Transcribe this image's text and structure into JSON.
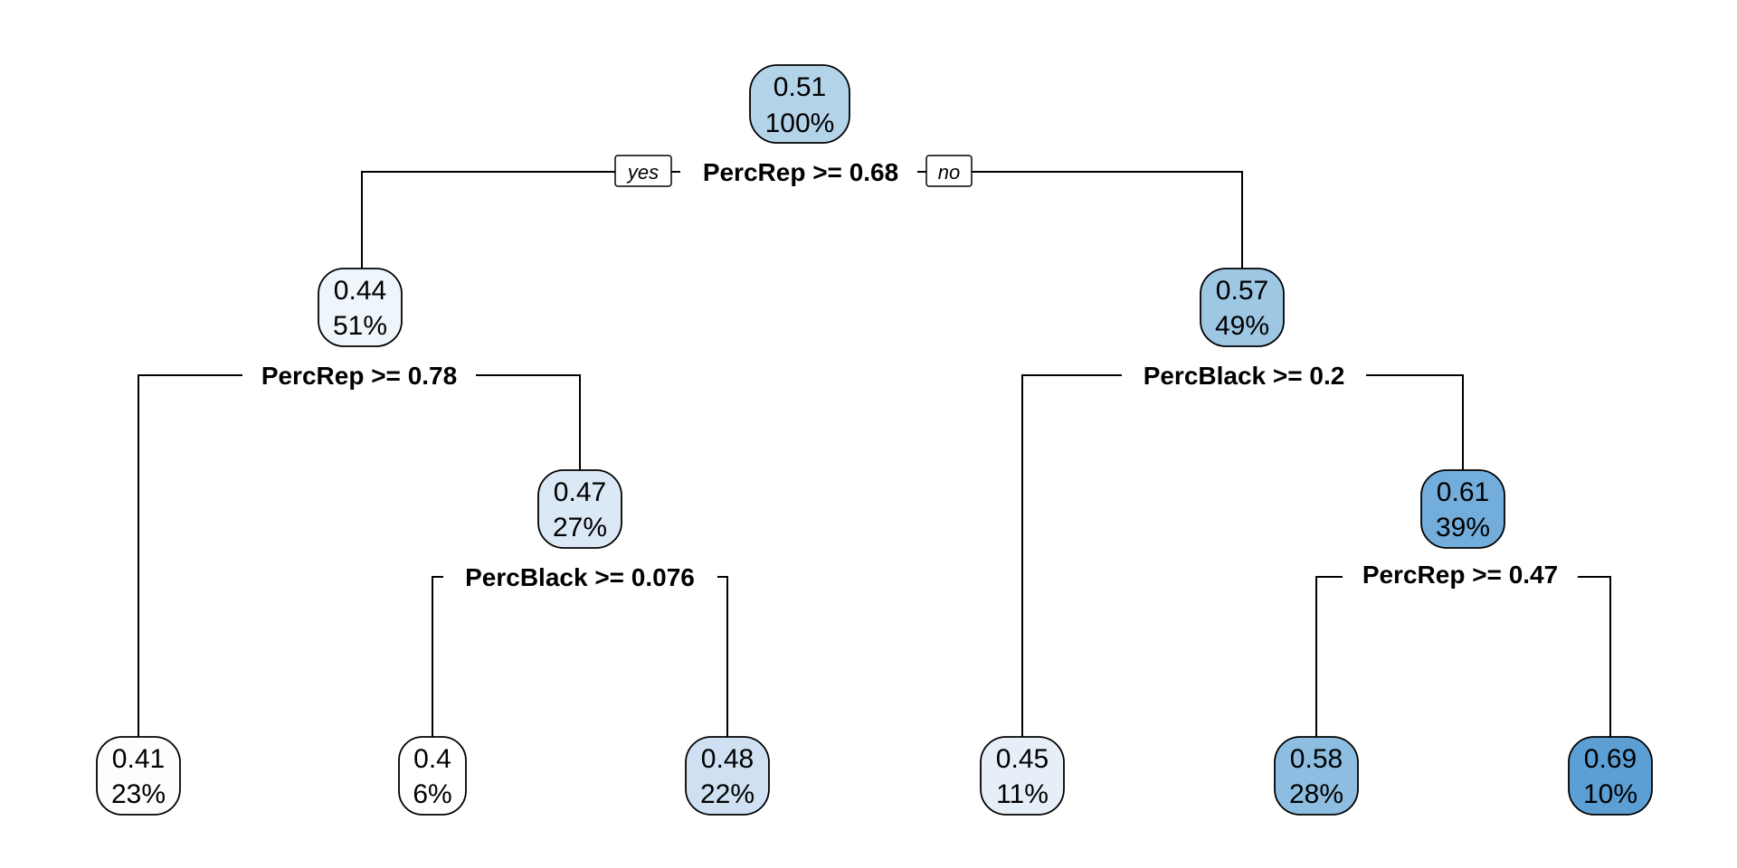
{
  "branch_labels": {
    "yes": "yes",
    "no": "no"
  },
  "nodes": [
    {
      "id": "root",
      "value": "0.51",
      "percent": "100%",
      "color": "#b3d3e9"
    },
    {
      "id": "n2",
      "value": "0.44",
      "percent": "51%",
      "color": "#eef5fb"
    },
    {
      "id": "n3",
      "value": "0.57",
      "percent": "49%",
      "color": "#9ec7e3"
    },
    {
      "id": "n5",
      "value": "0.47",
      "percent": "27%",
      "color": "#dbe8f5"
    },
    {
      "id": "n7",
      "value": "0.61",
      "percent": "39%",
      "color": "#72addb"
    },
    {
      "id": "leaf1",
      "value": "0.41",
      "percent": "23%",
      "color": "#fcfdff"
    },
    {
      "id": "leaf2",
      "value": "0.4",
      "percent": "6%",
      "color": "#ffffff"
    },
    {
      "id": "leaf3",
      "value": "0.48",
      "percent": "22%",
      "color": "#cfe0f2"
    },
    {
      "id": "leaf4",
      "value": "0.45",
      "percent": "11%",
      "color": "#e6eff8"
    },
    {
      "id": "leaf5",
      "value": "0.58",
      "percent": "28%",
      "color": "#8dbde1"
    },
    {
      "id": "leaf6",
      "value": "0.69",
      "percent": "10%",
      "color": "#5c9fd4"
    }
  ],
  "splits": [
    {
      "id": "s_root",
      "label": "PercRep >= 0.68"
    },
    {
      "id": "s_n2",
      "label": "PercRep >= 0.78"
    },
    {
      "id": "s_n3",
      "label": "PercBlack >= 0.2"
    },
    {
      "id": "s_n5",
      "label": "PercBlack >= 0.076"
    },
    {
      "id": "s_n7",
      "label": "PercRep >= 0.47"
    }
  ]
}
